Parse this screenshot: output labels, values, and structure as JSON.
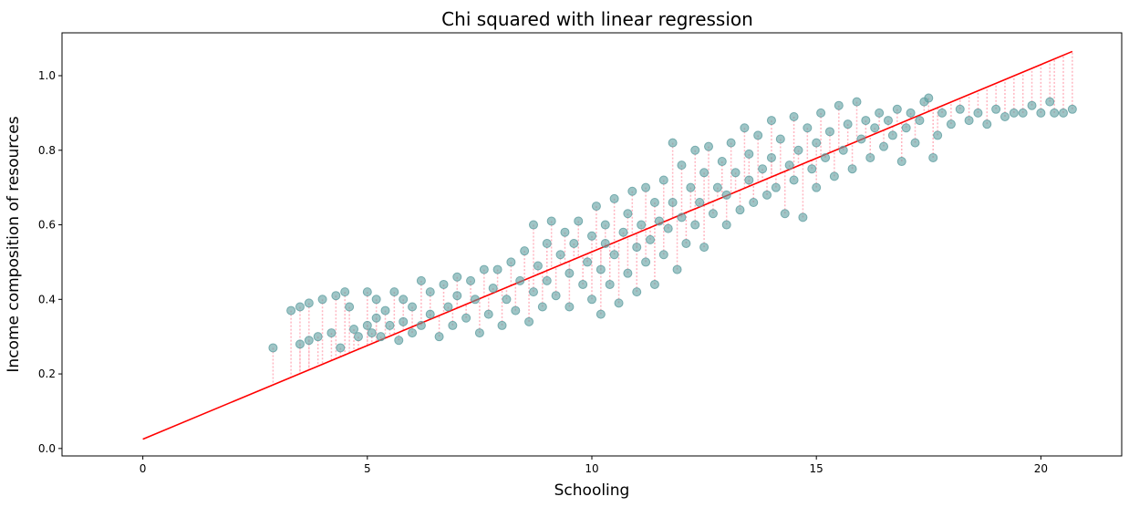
{
  "chart_data": {
    "type": "scatter",
    "title": "Chi squared with linear regression",
    "xlabel": "Schooling",
    "ylabel": "Income composition of resources",
    "xlim": [
      -1.8,
      21.8
    ],
    "ylim": [
      -0.02,
      1.115
    ],
    "xticks": [
      0,
      5,
      10,
      15,
      20
    ],
    "yticks": [
      0.0,
      0.2,
      0.4,
      0.6,
      0.8,
      1.0
    ],
    "ytick_labels": [
      "0.0",
      "0.2",
      "0.4",
      "0.6",
      "0.8",
      "1.0"
    ],
    "grid": false,
    "legend": "none",
    "colors": {
      "points": "#5f9ea0",
      "regression_line": "#ff0000",
      "residual_lines": "#ffb6c1",
      "frame": "#000000"
    },
    "regression_line": {
      "x": [
        0,
        20.7
      ],
      "y": [
        0.025,
        1.065
      ]
    },
    "series": [
      {
        "kind": "scatter",
        "points": [
          [
            2.9,
            0.27
          ],
          [
            3.3,
            0.37
          ],
          [
            3.5,
            0.28
          ],
          [
            3.5,
            0.38
          ],
          [
            3.7,
            0.29
          ],
          [
            3.7,
            0.39
          ],
          [
            3.9,
            0.3
          ],
          [
            4.0,
            0.4
          ],
          [
            4.2,
            0.31
          ],
          [
            4.3,
            0.41
          ],
          [
            4.4,
            0.27
          ],
          [
            4.5,
            0.42
          ],
          [
            4.6,
            0.38
          ],
          [
            4.7,
            0.32
          ],
          [
            4.8,
            0.3
          ],
          [
            5.0,
            0.33
          ],
          [
            5.0,
            0.42
          ],
          [
            5.1,
            0.31
          ],
          [
            5.2,
            0.35
          ],
          [
            5.2,
            0.4
          ],
          [
            5.3,
            0.3
          ],
          [
            5.4,
            0.37
          ],
          [
            5.5,
            0.33
          ],
          [
            5.6,
            0.42
          ],
          [
            5.7,
            0.29
          ],
          [
            5.8,
            0.4
          ],
          [
            5.8,
            0.34
          ],
          [
            6.0,
            0.31
          ],
          [
            6.0,
            0.38
          ],
          [
            6.2,
            0.45
          ],
          [
            6.2,
            0.33
          ],
          [
            6.4,
            0.36
          ],
          [
            6.4,
            0.42
          ],
          [
            6.6,
            0.3
          ],
          [
            6.7,
            0.44
          ],
          [
            6.8,
            0.38
          ],
          [
            6.9,
            0.33
          ],
          [
            7.0,
            0.46
          ],
          [
            7.0,
            0.41
          ],
          [
            7.2,
            0.35
          ],
          [
            7.3,
            0.45
          ],
          [
            7.4,
            0.4
          ],
          [
            7.5,
            0.31
          ],
          [
            7.6,
            0.48
          ],
          [
            7.7,
            0.36
          ],
          [
            7.8,
            0.43
          ],
          [
            7.9,
            0.48
          ],
          [
            8.0,
            0.33
          ],
          [
            8.1,
            0.4
          ],
          [
            8.2,
            0.5
          ],
          [
            8.3,
            0.37
          ],
          [
            8.4,
            0.45
          ],
          [
            8.5,
            0.53
          ],
          [
            8.6,
            0.34
          ],
          [
            8.7,
            0.42
          ],
          [
            8.7,
            0.6
          ],
          [
            8.8,
            0.49
          ],
          [
            8.9,
            0.38
          ],
          [
            9.0,
            0.55
          ],
          [
            9.0,
            0.45
          ],
          [
            9.1,
            0.61
          ],
          [
            9.2,
            0.41
          ],
          [
            9.3,
            0.52
          ],
          [
            9.4,
            0.58
          ],
          [
            9.5,
            0.38
          ],
          [
            9.5,
            0.47
          ],
          [
            9.6,
            0.55
          ],
          [
            9.7,
            0.61
          ],
          [
            9.8,
            0.44
          ],
          [
            9.9,
            0.5
          ],
          [
            10.0,
            0.57
          ],
          [
            10.0,
            0.4
          ],
          [
            10.1,
            0.65
          ],
          [
            10.2,
            0.48
          ],
          [
            10.2,
            0.36
          ],
          [
            10.3,
            0.55
          ],
          [
            10.3,
            0.6
          ],
          [
            10.4,
            0.44
          ],
          [
            10.5,
            0.67
          ],
          [
            10.5,
            0.52
          ],
          [
            10.6,
            0.39
          ],
          [
            10.7,
            0.58
          ],
          [
            10.8,
            0.63
          ],
          [
            10.8,
            0.47
          ],
          [
            10.9,
            0.69
          ],
          [
            11.0,
            0.54
          ],
          [
            11.0,
            0.42
          ],
          [
            11.1,
            0.6
          ],
          [
            11.2,
            0.7
          ],
          [
            11.2,
            0.5
          ],
          [
            11.3,
            0.56
          ],
          [
            11.4,
            0.66
          ],
          [
            11.4,
            0.44
          ],
          [
            11.5,
            0.61
          ],
          [
            11.6,
            0.72
          ],
          [
            11.6,
            0.52
          ],
          [
            11.7,
            0.59
          ],
          [
            11.8,
            0.82
          ],
          [
            11.8,
            0.66
          ],
          [
            11.9,
            0.48
          ],
          [
            12.0,
            0.62
          ],
          [
            12.0,
            0.76
          ],
          [
            12.1,
            0.55
          ],
          [
            12.2,
            0.7
          ],
          [
            12.3,
            0.8
          ],
          [
            12.3,
            0.6
          ],
          [
            12.4,
            0.66
          ],
          [
            12.5,
            0.74
          ],
          [
            12.5,
            0.54
          ],
          [
            12.6,
            0.81
          ],
          [
            12.7,
            0.63
          ],
          [
            12.8,
            0.7
          ],
          [
            12.9,
            0.77
          ],
          [
            13.0,
            0.6
          ],
          [
            13.0,
            0.68
          ],
          [
            13.1,
            0.82
          ],
          [
            13.2,
            0.74
          ],
          [
            13.3,
            0.64
          ],
          [
            13.4,
            0.86
          ],
          [
            13.5,
            0.72
          ],
          [
            13.5,
            0.79
          ],
          [
            13.6,
            0.66
          ],
          [
            13.7,
            0.84
          ],
          [
            13.8,
            0.75
          ],
          [
            13.9,
            0.68
          ],
          [
            14.0,
            0.88
          ],
          [
            14.0,
            0.78
          ],
          [
            14.1,
            0.7
          ],
          [
            14.2,
            0.83
          ],
          [
            14.3,
            0.63
          ],
          [
            14.4,
            0.76
          ],
          [
            14.5,
            0.89
          ],
          [
            14.5,
            0.72
          ],
          [
            14.6,
            0.8
          ],
          [
            14.7,
            0.62
          ],
          [
            14.8,
            0.86
          ],
          [
            14.9,
            0.75
          ],
          [
            15.0,
            0.82
          ],
          [
            15.0,
            0.7
          ],
          [
            15.1,
            0.9
          ],
          [
            15.2,
            0.78
          ],
          [
            15.3,
            0.85
          ],
          [
            15.4,
            0.73
          ],
          [
            15.5,
            0.92
          ],
          [
            15.6,
            0.8
          ],
          [
            15.7,
            0.87
          ],
          [
            15.8,
            0.75
          ],
          [
            15.9,
            0.93
          ],
          [
            16.0,
            0.83
          ],
          [
            16.1,
            0.88
          ],
          [
            16.2,
            0.78
          ],
          [
            16.3,
            0.86
          ],
          [
            16.4,
            0.9
          ],
          [
            16.5,
            0.81
          ],
          [
            16.6,
            0.88
          ],
          [
            16.7,
            0.84
          ],
          [
            16.8,
            0.91
          ],
          [
            16.9,
            0.77
          ],
          [
            17.0,
            0.86
          ],
          [
            17.1,
            0.9
          ],
          [
            17.2,
            0.82
          ],
          [
            17.3,
            0.88
          ],
          [
            17.4,
            0.93
          ],
          [
            17.5,
            0.94
          ],
          [
            17.6,
            0.78
          ],
          [
            17.7,
            0.84
          ],
          [
            17.8,
            0.9
          ],
          [
            18.0,
            0.87
          ],
          [
            18.2,
            0.91
          ],
          [
            18.4,
            0.88
          ],
          [
            18.6,
            0.9
          ],
          [
            18.8,
            0.87
          ],
          [
            19.0,
            0.91
          ],
          [
            19.2,
            0.89
          ],
          [
            19.4,
            0.9
          ],
          [
            19.6,
            0.9
          ],
          [
            19.8,
            0.92
          ],
          [
            20.0,
            0.9
          ],
          [
            20.2,
            0.93
          ],
          [
            20.3,
            0.9
          ],
          [
            20.5,
            0.9
          ],
          [
            20.7,
            0.91
          ]
        ]
      }
    ]
  }
}
